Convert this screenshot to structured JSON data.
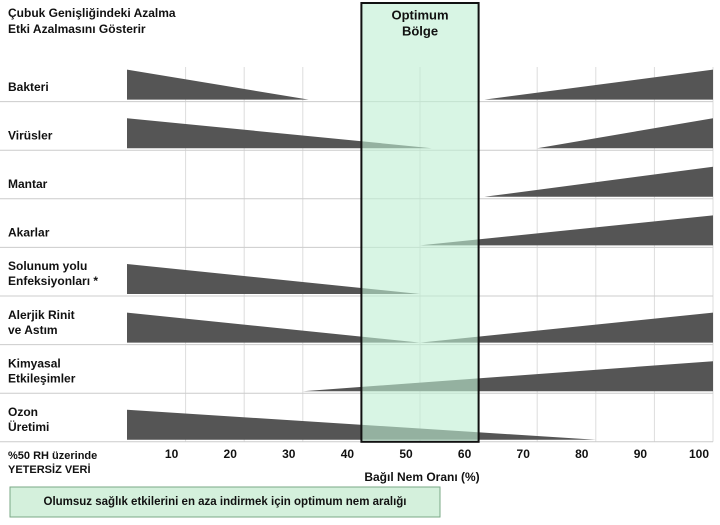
{
  "chart_data": {
    "type": "wedge",
    "title": [
      "Çubuk Genişliğindeki Azalma",
      "Etki Azalmasını Gösterir"
    ],
    "zone_label": [
      "Optimum",
      "Bölge"
    ],
    "zone": [
      40,
      60
    ],
    "xlabel": "Bağıl Nem Oranı (%)",
    "xlim": [
      0,
      100
    ],
    "xticks": [
      10,
      20,
      30,
      40,
      50,
      60,
      70,
      80,
      90,
      100
    ],
    "color": "#555555",
    "rows": [
      {
        "label": [
          "Bakteri"
        ],
        "decrease_end": 31,
        "increase_start": 61
      },
      {
        "label": [
          "Virüsler"
        ],
        "decrease_end": 52,
        "increase_start": 70
      },
      {
        "label": [
          "Mantar"
        ],
        "decrease_end": null,
        "increase_start": 61
      },
      {
        "label": [
          "Akarlar"
        ],
        "decrease_end": null,
        "increase_start": 50
      },
      {
        "label": [
          "Solunum yolu",
          "Enfeksiyonları *"
        ],
        "decrease_end": 50,
        "increase_start": null
      },
      {
        "label": [
          "Alerjik Rinit",
          "ve Astım"
        ],
        "decrease_end": 50,
        "increase_start": 50
      },
      {
        "label": [
          "Kimyasal",
          "Etkileşimler"
        ],
        "decrease_end": null,
        "increase_start": 30
      },
      {
        "label": [
          "Ozon",
          "Üretimi"
        ],
        "decrease_end": 80,
        "increase_start": null
      }
    ],
    "footnote": [
      "%50 RH üzerinde",
      "YETERSİZ VERİ"
    ],
    "legend": "Olumsuz sağlık etkilerini en aza indirmek için optimum nem aralığı"
  }
}
